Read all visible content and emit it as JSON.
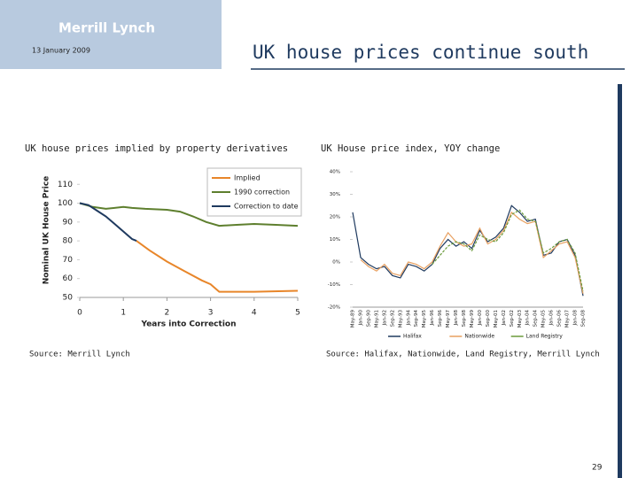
{
  "header": {
    "logo": "Merrill Lynch",
    "date": "13 January 2009",
    "title": "UK house prices continue south"
  },
  "chart_data": [
    {
      "type": "line",
      "title": "UK house prices implied by property derivatives",
      "xlabel": "Years into Correction",
      "ylabel": "Nominal UK House Price",
      "xlim": [
        0,
        5
      ],
      "xticks": [
        0,
        1,
        2,
        3,
        4,
        5
      ],
      "ylim": [
        50,
        112
      ],
      "yticks": [
        50,
        60,
        70,
        80,
        90,
        100,
        110
      ],
      "grid": false,
      "legend": "upper right",
      "series": [
        {
          "name": "Implied",
          "color": "#e8862a",
          "dash": false,
          "x": [
            1.3,
            1.6,
            2.0,
            2.4,
            2.8,
            3.0,
            3.2,
            4.0,
            5.0
          ],
          "values": [
            80,
            75,
            69,
            64,
            59,
            57,
            53,
            53,
            53.5
          ]
        },
        {
          "name": "1990 correction",
          "color": "#5e7f2e",
          "dash": false,
          "x": [
            0,
            0.3,
            0.6,
            1.0,
            1.2,
            1.5,
            2.0,
            2.3,
            2.6,
            2.9,
            3.2,
            3.6,
            4.0,
            4.5,
            5.0
          ],
          "values": [
            100,
            98,
            97,
            98,
            97.5,
            97,
            96.5,
            95.5,
            93,
            90,
            88,
            88.5,
            89,
            88.5,
            88
          ]
        },
        {
          "name": "Correction to date",
          "color": "#1f3a5f",
          "dash": false,
          "x": [
            0,
            0.2,
            0.4,
            0.6,
            0.8,
            1.0,
            1.2,
            1.3
          ],
          "values": [
            100,
            99,
            96,
            93,
            89,
            85,
            81,
            80
          ]
        }
      ],
      "source": "Source: Merrill Lynch"
    },
    {
      "type": "line",
      "title": "UK House price index, YOY change",
      "categories": [
        "May-89",
        "Jan-90",
        "Sep-90",
        "May-91",
        "Jan-92",
        "Sep-92",
        "May-93",
        "Jan-94",
        "Sep-94",
        "May-95",
        "Jan-96",
        "Sep-96",
        "May-97",
        "Jan-98",
        "Sep-98",
        "May-99",
        "Jan-00",
        "Sep-00",
        "May-01",
        "Jan-02",
        "Sep-02",
        "May-03",
        "Jan-04",
        "Sep-04",
        "May-05",
        "Jan-06",
        "Sep-06",
        "May-07",
        "Jan-08",
        "Sep-08"
      ],
      "ylim": [
        -20,
        40
      ],
      "yticks": [
        {
          "value": -20,
          "label": "-20%"
        },
        {
          "value": -10,
          "label": "-10%"
        },
        {
          "value": 0,
          "label": "0%"
        },
        {
          "value": 10,
          "label": "10%"
        },
        {
          "value": 20,
          "label": "20%"
        },
        {
          "value": 30,
          "label": "30%"
        },
        {
          "value": 40,
          "label": "40%"
        }
      ],
      "grid": false,
      "legend": "bottom",
      "series": [
        {
          "name": "Halifax",
          "color": "#1f3a5f",
          "dash": false,
          "values": [
            22,
            2,
            -1,
            -3,
            -2,
            -6,
            -7,
            -1,
            -2,
            -4,
            -1,
            6,
            10,
            7,
            9,
            6,
            14,
            9,
            11,
            15,
            25,
            22,
            18,
            19,
            3,
            4,
            9,
            10,
            3,
            -15
          ]
        },
        {
          "name": "Nationwide",
          "color": "#e8a060",
          "dash": false,
          "values": [
            null,
            1,
            -2,
            -4,
            -1,
            -5,
            -6,
            0,
            -1,
            -3,
            0,
            7,
            13,
            9,
            7,
            8,
            15,
            8,
            10,
            14,
            22,
            19,
            17,
            18,
            2,
            5,
            8,
            9,
            2,
            -14
          ]
        },
        {
          "name": "Land Registry",
          "color": "#6a9a3a",
          "dash": true,
          "values": [
            null,
            null,
            null,
            null,
            null,
            null,
            null,
            null,
            null,
            null,
            -1,
            3,
            7,
            9,
            8,
            5,
            12,
            10,
            9,
            13,
            21,
            23,
            19,
            18,
            4,
            6,
            9,
            10,
            4,
            -13
          ]
        }
      ],
      "source": "Source: Halifax, Nationwide, Land Registry, Merrill Lynch"
    }
  ],
  "page_number": "29"
}
